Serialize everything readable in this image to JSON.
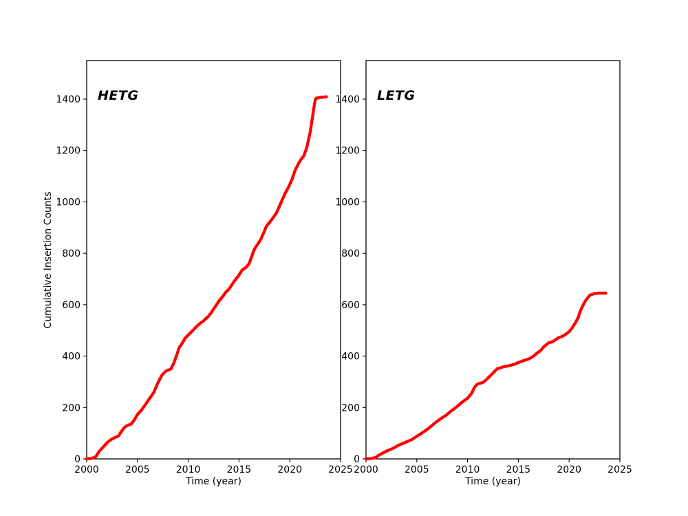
{
  "figure": {
    "background": "#ffffff",
    "axis_color": "#000000",
    "tick_label_color": "#000000"
  },
  "chart_data": [
    {
      "type": "scatter",
      "title_annotation": "HETG",
      "xlabel": "Time (year)",
      "ylabel": "Cumulative Insertion Counts",
      "marker_color": "#ff0000",
      "legend": "none",
      "grid": false,
      "xlim": [
        2000,
        2025
      ],
      "ylim": [
        0,
        1550
      ],
      "xticks": [
        2000,
        2005,
        2010,
        2015,
        2020,
        2025
      ],
      "yticks": [
        0,
        200,
        400,
        600,
        800,
        1000,
        1200,
        1400
      ],
      "points": [
        [
          2000.0,
          0
        ],
        [
          2000.5,
          2
        ],
        [
          2000.9,
          8
        ],
        [
          2001.2,
          28
        ],
        [
          2001.6,
          45
        ],
        [
          2002.0,
          63
        ],
        [
          2002.4,
          75
        ],
        [
          2002.7,
          82
        ],
        [
          2003.1,
          88
        ],
        [
          2003.4,
          105
        ],
        [
          2003.7,
          122
        ],
        [
          2004.0,
          130
        ],
        [
          2004.4,
          136
        ],
        [
          2004.7,
          152
        ],
        [
          2005.0,
          173
        ],
        [
          2005.4,
          190
        ],
        [
          2005.8,
          212
        ],
        [
          2006.2,
          236
        ],
        [
          2006.6,
          258
        ],
        [
          2007.0,
          295
        ],
        [
          2007.4,
          325
        ],
        [
          2007.8,
          342
        ],
        [
          2008.3,
          350
        ],
        [
          2008.6,
          375
        ],
        [
          2008.9,
          408
        ],
        [
          2009.1,
          432
        ],
        [
          2009.4,
          450
        ],
        [
          2009.7,
          470
        ],
        [
          2010.1,
          486
        ],
        [
          2010.6,
          506
        ],
        [
          2011.0,
          522
        ],
        [
          2011.5,
          537
        ],
        [
          2012.0,
          555
        ],
        [
          2012.4,
          577
        ],
        [
          2013.0,
          613
        ],
        [
          2013.4,
          632
        ],
        [
          2013.7,
          649
        ],
        [
          2014.0,
          660
        ],
        [
          2014.6,
          695
        ],
        [
          2015.0,
          715
        ],
        [
          2015.3,
          735
        ],
        [
          2015.7,
          745
        ],
        [
          2016.0,
          760
        ],
        [
          2016.5,
          815
        ],
        [
          2017.0,
          845
        ],
        [
          2017.2,
          859
        ],
        [
          2017.7,
          905
        ],
        [
          2018.0,
          920
        ],
        [
          2018.3,
          935
        ],
        [
          2018.7,
          958
        ],
        [
          2019.0,
          985
        ],
        [
          2019.5,
          1030
        ],
        [
          2019.9,
          1060
        ],
        [
          2020.2,
          1085
        ],
        [
          2020.5,
          1120
        ],
        [
          2020.8,
          1145
        ],
        [
          2021.1,
          1165
        ],
        [
          2021.4,
          1180
        ],
        [
          2021.7,
          1215
        ],
        [
          2022.0,
          1270
        ],
        [
          2022.2,
          1320
        ],
        [
          2022.35,
          1360
        ],
        [
          2022.5,
          1395
        ],
        [
          2022.6,
          1404
        ],
        [
          2022.9,
          1406
        ],
        [
          2023.2,
          1407
        ],
        [
          2023.6,
          1409
        ]
      ]
    },
    {
      "type": "scatter",
      "title_annotation": "LETG",
      "xlabel": "Time (year)",
      "ylabel": "",
      "marker_color": "#ff0000",
      "legend": "none",
      "grid": false,
      "xlim": [
        2000,
        2025
      ],
      "ylim": [
        0,
        1550
      ],
      "xticks": [
        2000,
        2005,
        2010,
        2015,
        2020,
        2025
      ],
      "yticks": [
        0,
        200,
        400,
        600,
        800,
        1000,
        1200,
        1400
      ],
      "points": [
        [
          2000.0,
          0
        ],
        [
          2000.6,
          2
        ],
        [
          2001.0,
          6
        ],
        [
          2001.2,
          13
        ],
        [
          2002.0,
          30
        ],
        [
          2002.6,
          40
        ],
        [
          2003.2,
          53
        ],
        [
          2003.8,
          63
        ],
        [
          2004.5,
          75
        ],
        [
          2005.0,
          88
        ],
        [
          2005.6,
          103
        ],
        [
          2006.2,
          120
        ],
        [
          2006.8,
          140
        ],
        [
          2007.3,
          155
        ],
        [
          2007.9,
          170
        ],
        [
          2008.4,
          187
        ],
        [
          2009.0,
          205
        ],
        [
          2009.5,
          222
        ],
        [
          2010.0,
          236
        ],
        [
          2010.4,
          255
        ],
        [
          2010.7,
          280
        ],
        [
          2011.0,
          292
        ],
        [
          2011.5,
          297
        ],
        [
          2011.9,
          310
        ],
        [
          2012.5,
          334
        ],
        [
          2012.9,
          350
        ],
        [
          2013.5,
          358
        ],
        [
          2014.0,
          362
        ],
        [
          2014.6,
          368
        ],
        [
          2015.0,
          375
        ],
        [
          2015.5,
          382
        ],
        [
          2016.1,
          390
        ],
        [
          2016.5,
          400
        ],
        [
          2016.8,
          410
        ],
        [
          2017.2,
          422
        ],
        [
          2017.5,
          436
        ],
        [
          2018.0,
          452
        ],
        [
          2018.4,
          456
        ],
        [
          2018.7,
          465
        ],
        [
          2019.0,
          472
        ],
        [
          2019.4,
          478
        ],
        [
          2019.7,
          486
        ],
        [
          2020.0,
          495
        ],
        [
          2020.3,
          510
        ],
        [
          2020.6,
          528
        ],
        [
          2020.9,
          550
        ],
        [
          2021.1,
          575
        ],
        [
          2021.3,
          592
        ],
        [
          2021.5,
          608
        ],
        [
          2021.7,
          620
        ],
        [
          2021.9,
          631
        ],
        [
          2022.1,
          638
        ],
        [
          2022.4,
          642
        ],
        [
          2022.7,
          644
        ],
        [
          2023.0,
          645
        ],
        [
          2023.6,
          645
        ]
      ]
    }
  ]
}
